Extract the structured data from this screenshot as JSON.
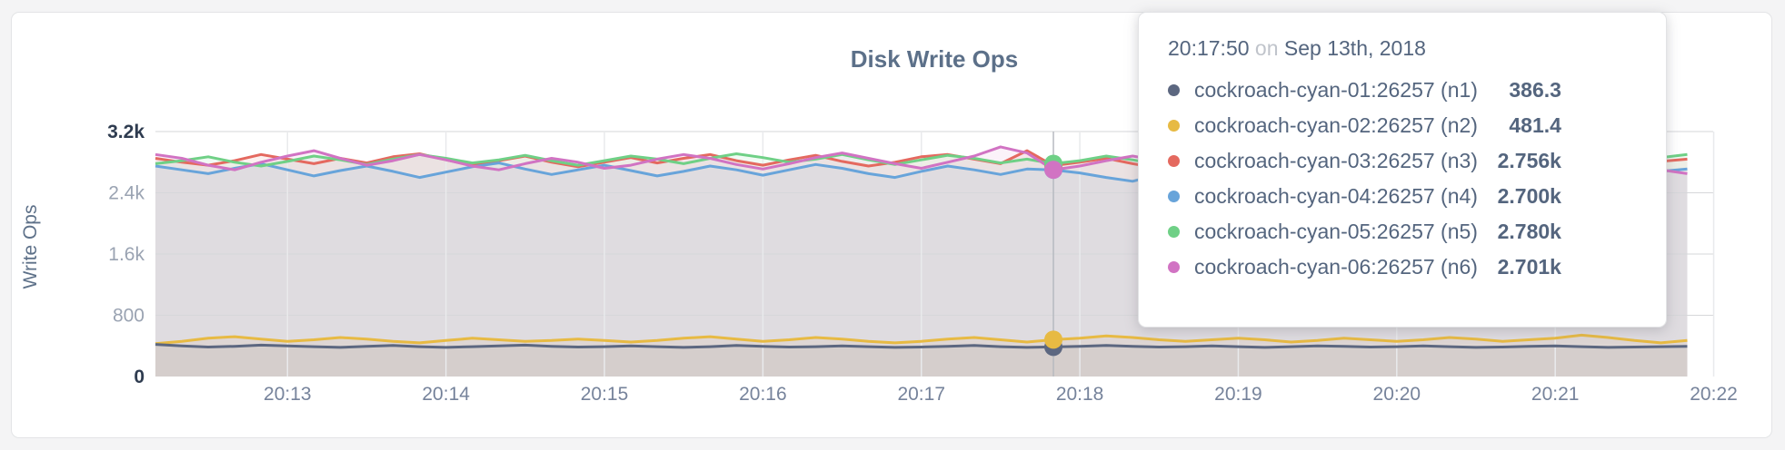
{
  "page": {
    "background": "#f4f4f5"
  },
  "chart": {
    "title": "Disk Write Ops",
    "y_axis": {
      "label": "Write Ops",
      "ticks": [
        {
          "value": 0,
          "label": "0",
          "emphasis": true
        },
        {
          "value": 800,
          "label": "800",
          "emphasis": false
        },
        {
          "value": 1600,
          "label": "1.6k",
          "emphasis": false
        },
        {
          "value": 2400,
          "label": "2.4k",
          "emphasis": false
        },
        {
          "value": 3200,
          "label": "3.2k",
          "emphasis": true
        }
      ]
    },
    "x_axis": {
      "ticks": [
        "20:13",
        "20:14",
        "20:15",
        "20:16",
        "20:17",
        "20:18",
        "20:19",
        "20:20",
        "20:21",
        "20:22"
      ]
    },
    "colors": {
      "grid_horizontal": "#d6d7da",
      "grid_vertical": "#e9eaec",
      "hover_line": "#b7bac0",
      "title_text": "#5c7089",
      "axis_text": "#76839b",
      "axis_text_mid": "#9aa3b2",
      "axis_text_emphasis": "#2f3c50"
    }
  },
  "tooltip": {
    "time": "20:17:50",
    "on_word": "on",
    "date": "Sep 13th, 2018",
    "hover_index": 34,
    "rows": [
      {
        "name": "cockroach-cyan-01:26257 (n1)",
        "value": "386.3",
        "color": "#5c6780"
      },
      {
        "name": "cockroach-cyan-02:26257 (n2)",
        "value": "481.4",
        "color": "#e7ba43"
      },
      {
        "name": "cockroach-cyan-03:26257 (n3)",
        "value": "2.756k",
        "color": "#e4695f"
      },
      {
        "name": "cockroach-cyan-04:26257 (n4)",
        "value": "2.700k",
        "color": "#68a4da"
      },
      {
        "name": "cockroach-cyan-05:26257 (n5)",
        "value": "2.780k",
        "color": "#6fd086"
      },
      {
        "name": "cockroach-cyan-06:26257 (n6)",
        "value": "2.701k",
        "color": "#d173c3"
      }
    ]
  },
  "chart_data": {
    "type": "line",
    "title": "Disk Write Ops",
    "xlabel": "",
    "ylabel": "Write Ops",
    "ylim": [
      0,
      3200
    ],
    "grid": true,
    "legend_position": "tooltip",
    "x_start": "20:12:10",
    "x_interval_seconds": 10,
    "x_tick_labels": [
      "20:13",
      "20:14",
      "20:15",
      "20:16",
      "20:17",
      "20:18",
      "20:19",
      "20:20",
      "20:21",
      "20:22"
    ],
    "hover": {
      "time": "20:17:50",
      "index": 34
    },
    "series": [
      {
        "name": "cockroach-cyan-01:26257 (n1)",
        "color": "#5c6780",
        "values": [
          420,
          400,
          385,
          395,
          410,
          400,
          390,
          380,
          395,
          405,
          390,
          380,
          390,
          400,
          410,
          395,
          385,
          390,
          400,
          390,
          380,
          390,
          405,
          395,
          385,
          390,
          400,
          390,
          380,
          385,
          395,
          405,
          390,
          380,
          386.3,
          395,
          405,
          395,
          385,
          390,
          400,
          390,
          380,
          390,
          400,
          395,
          385,
          390,
          400,
          390,
          380,
          385,
          395,
          400,
          390,
          380,
          385,
          390,
          395
        ]
      },
      {
        "name": "cockroach-cyan-02:26257 (n2)",
        "color": "#e7ba43",
        "values": [
          430,
          460,
          500,
          520,
          490,
          460,
          480,
          510,
          490,
          460,
          440,
          470,
          500,
          480,
          460,
          470,
          490,
          470,
          450,
          470,
          500,
          520,
          490,
          460,
          480,
          510,
          490,
          460,
          440,
          460,
          490,
          510,
          480,
          450,
          481.4,
          500,
          530,
          510,
          480,
          460,
          480,
          500,
          480,
          450,
          470,
          500,
          480,
          460,
          480,
          510,
          490,
          460,
          480,
          500,
          540,
          510,
          470,
          440,
          470
        ]
      },
      {
        "name": "cockroach-cyan-03:26257 (n3)",
        "color": "#e4695f",
        "values": [
          2850,
          2800,
          2760,
          2820,
          2900,
          2840,
          2780,
          2850,
          2790,
          2870,
          2910,
          2830,
          2760,
          2820,
          2880,
          2800,
          2740,
          2800,
          2860,
          2790,
          2850,
          2900,
          2820,
          2760,
          2830,
          2890,
          2810,
          2750,
          2800,
          2870,
          2900,
          2840,
          2780,
          2950,
          2756,
          2800,
          2850,
          2780,
          2720,
          2790,
          2860,
          2800,
          2750,
          2810,
          2880,
          2820,
          2760,
          2830,
          2790,
          2850,
          2900,
          2830,
          2770,
          2820,
          2860,
          2800,
          2750,
          2810,
          2840
        ]
      },
      {
        "name": "cockroach-cyan-04:26257 (n4)",
        "color": "#68a4da",
        "values": [
          2750,
          2700,
          2650,
          2720,
          2780,
          2700,
          2620,
          2690,
          2750,
          2680,
          2600,
          2670,
          2740,
          2790,
          2710,
          2640,
          2700,
          2760,
          2690,
          2620,
          2680,
          2750,
          2700,
          2630,
          2700,
          2770,
          2720,
          2650,
          2600,
          2680,
          2750,
          2700,
          2640,
          2710,
          2700,
          2660,
          2600,
          2550,
          2640,
          2720,
          2760,
          2690,
          2620,
          2680,
          2740,
          2700,
          2630,
          2690,
          2750,
          2710,
          2650,
          2700,
          2760,
          2700,
          2640,
          2690,
          2730,
          2680,
          2710
        ]
      },
      {
        "name": "cockroach-cyan-05:26257 (n5)",
        "color": "#6fd086",
        "values": [
          2780,
          2820,
          2870,
          2800,
          2750,
          2810,
          2880,
          2830,
          2770,
          2840,
          2900,
          2850,
          2790,
          2830,
          2890,
          2820,
          2760,
          2820,
          2880,
          2840,
          2780,
          2850,
          2910,
          2860,
          2800,
          2840,
          2900,
          2830,
          2770,
          2830,
          2890,
          2850,
          2790,
          2840,
          2780,
          2820,
          2880,
          2830,
          2770,
          2840,
          2900,
          2840,
          2780,
          2830,
          2890,
          2820,
          2760,
          2830,
          2870,
          2900,
          2850,
          2790,
          2840,
          2880,
          2820,
          2760,
          2820,
          2860,
          2900
        ]
      },
      {
        "name": "cockroach-cyan-06:26257 (n6)",
        "color": "#d173c3",
        "values": [
          2900,
          2850,
          2760,
          2700,
          2800,
          2880,
          2950,
          2850,
          2760,
          2820,
          2900,
          2830,
          2750,
          2700,
          2780,
          2850,
          2800,
          2720,
          2760,
          2840,
          2900,
          2850,
          2770,
          2710,
          2780,
          2860,
          2920,
          2850,
          2780,
          2720,
          2800,
          2880,
          3000,
          2920,
          2701,
          2750,
          2820,
          2880,
          2820,
          2750,
          2700,
          2770,
          2850,
          2800,
          2730,
          2700,
          2780,
          2850,
          2900,
          2840,
          2760,
          2700,
          2760,
          2830,
          2890,
          2820,
          2750,
          2700,
          2650
        ]
      }
    ]
  }
}
